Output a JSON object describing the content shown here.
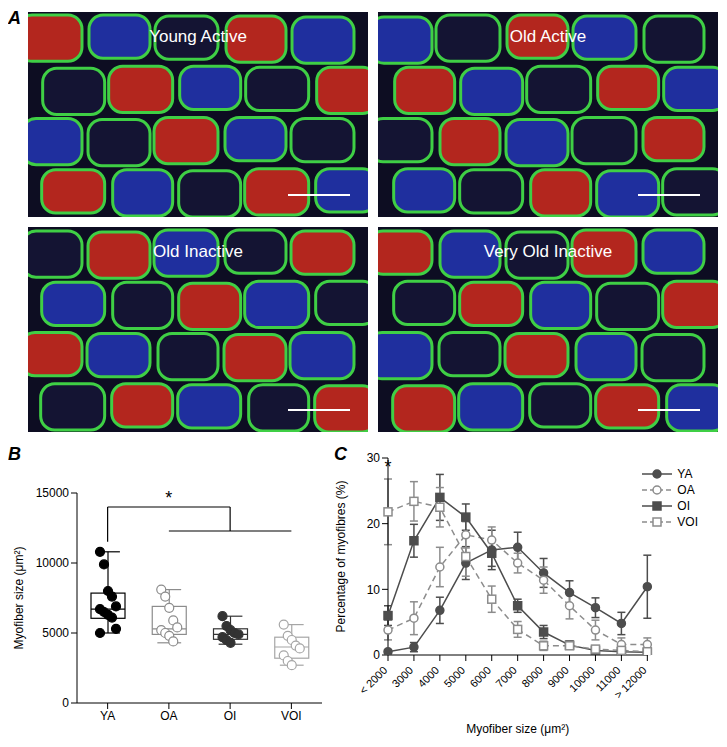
{
  "panel_a": {
    "panel_label": "A",
    "images": [
      "Young Active",
      "Old Active",
      "Old Inactive",
      "Very Old Inactive"
    ]
  },
  "chart_data": [
    {
      "panel_label": "B",
      "type": "box",
      "ylabel": "Myofiber size (μm²)",
      "categories": [
        "YA",
        "OA",
        "OI",
        "VOI"
      ],
      "ylim": [
        0,
        15000
      ],
      "yticks": [
        0,
        5000,
        10000,
        15000
      ],
      "grid": false,
      "boxes": [
        {
          "color": "#000000",
          "marker": "filled_circle",
          "min": 5000,
          "q1": 6050,
          "median": 6700,
          "q3": 7850,
          "max": 10800,
          "points": [
            10800,
            9900,
            8000,
            7600,
            6900,
            6700,
            6500,
            6300,
            6100,
            5300,
            5000
          ]
        },
        {
          "color": "#8c8c8c",
          "marker": "open_circle",
          "min": 4300,
          "q1": 4900,
          "median": 5300,
          "q3": 6900,
          "max": 8100,
          "points": [
            8100,
            7600,
            6800,
            5900,
            5400,
            5200,
            5000,
            4800,
            4400
          ]
        },
        {
          "color": "#333333",
          "marker": "filled_circle",
          "min": 4200,
          "q1": 4550,
          "median": 4900,
          "q3": 5300,
          "max": 6200,
          "points": [
            6200,
            5500,
            5200,
            5000,
            4900,
            4700,
            4500,
            4300
          ]
        },
        {
          "color": "#a6a6a6",
          "marker": "open_circle",
          "min": 2700,
          "q1": 3200,
          "median": 4000,
          "q3": 4700,
          "max": 5600,
          "points": [
            5600,
            4800,
            4500,
            4100,
            3900,
            3400,
            3000,
            2700
          ]
        }
      ],
      "annotations": [
        {
          "text": "*",
          "from": "YA",
          "to": [
            "OA",
            "OI",
            "VOI"
          ]
        }
      ]
    },
    {
      "panel_label": "C",
      "type": "line",
      "xlabel": "Myofiber size (μm²)",
      "ylabel": "Percentage of myofibres (%)",
      "categories": [
        "< 2000",
        "3000",
        "4000",
        "5000",
        "6000",
        "7000",
        "8000",
        "9000",
        "10000",
        "11000",
        "> 12000"
      ],
      "ylim": [
        0,
        30
      ],
      "yticks": [
        0,
        10,
        20,
        30
      ],
      "grid": false,
      "legend": "top-right",
      "series": [
        {
          "name": "YA",
          "color": "#4d4d4d",
          "marker": "circle",
          "line_style": "solid",
          "values": [
            0.5,
            1.2,
            6.8,
            14,
            16,
            16.4,
            12.5,
            9.5,
            7.2,
            4.8,
            10.4
          ],
          "errors": [
            0.3,
            0.7,
            2,
            2.5,
            3,
            2.3,
            2.2,
            1.8,
            1.5,
            1.7,
            4.8
          ]
        },
        {
          "name": "OA",
          "color": "#8c8c8c",
          "marker": "open_circle",
          "line_style": "dashed",
          "values": [
            3.8,
            5.6,
            13.4,
            18.3,
            17.5,
            14,
            11.4,
            7.5,
            3.8,
            1.6,
            1.6
          ],
          "errors": [
            1.5,
            2.5,
            3,
            2,
            2,
            1.5,
            2,
            2,
            1.5,
            1,
            1
          ]
        },
        {
          "name": "OI",
          "color": "#4d4d4d",
          "marker": "square",
          "line_style": "solid",
          "values": [
            6,
            17.4,
            24,
            21,
            15.5,
            7.5,
            3.5,
            1.5,
            0.7,
            0.5,
            0.4
          ],
          "errors": [
            1.5,
            2.5,
            3.5,
            2,
            2,
            1,
            1,
            0.6,
            0.3,
            0.3,
            0.3
          ]
        },
        {
          "name": "VOI",
          "color": "#8c8c8c",
          "marker": "open_square",
          "line_style": "dashed",
          "values": [
            21.8,
            23.4,
            22.5,
            15,
            8.5,
            3.9,
            1.4,
            1.4,
            0.9,
            0.7,
            0.5
          ],
          "errors": [
            5,
            3,
            3,
            3,
            2,
            1.2,
            0.7,
            0.5,
            0.3,
            0.3,
            0.3
          ]
        }
      ],
      "annotations": [
        {
          "text": "*",
          "x": "< 2000"
        }
      ]
    }
  ]
}
